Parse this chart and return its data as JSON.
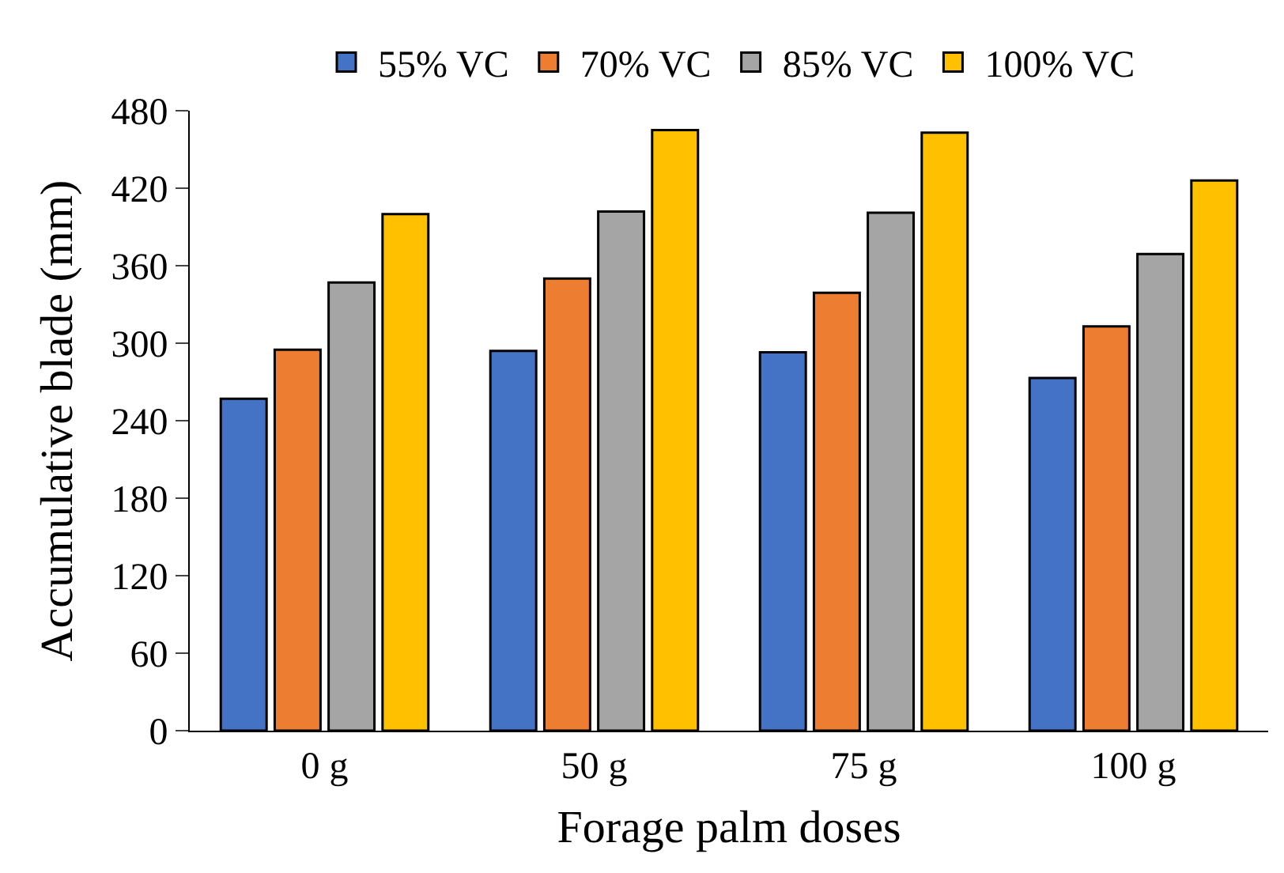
{
  "chart_data": {
    "type": "bar",
    "xlabel": "Forage palm doses",
    "ylabel": "Accumulative blade (mm)",
    "categories": [
      "0 g",
      "50 g",
      "75 g",
      "100 g"
    ],
    "series": [
      {
        "name": "55% VC",
        "color": "#4472c4",
        "values": [
          257,
          294,
          293,
          273
        ]
      },
      {
        "name": "70% VC",
        "color": "#ed7d31",
        "values": [
          295,
          350,
          339,
          313
        ]
      },
      {
        "name": "85% VC",
        "color": "#a5a5a5",
        "values": [
          347,
          402,
          401,
          369
        ]
      },
      {
        "name": "100% VC",
        "color": "#ffc000",
        "values": [
          400,
          465,
          463,
          426
        ]
      }
    ],
    "ylim": [
      0,
      480
    ],
    "yticks": [
      0,
      60,
      120,
      180,
      240,
      300,
      360,
      420,
      480
    ],
    "grid": false,
    "legend": "top"
  }
}
